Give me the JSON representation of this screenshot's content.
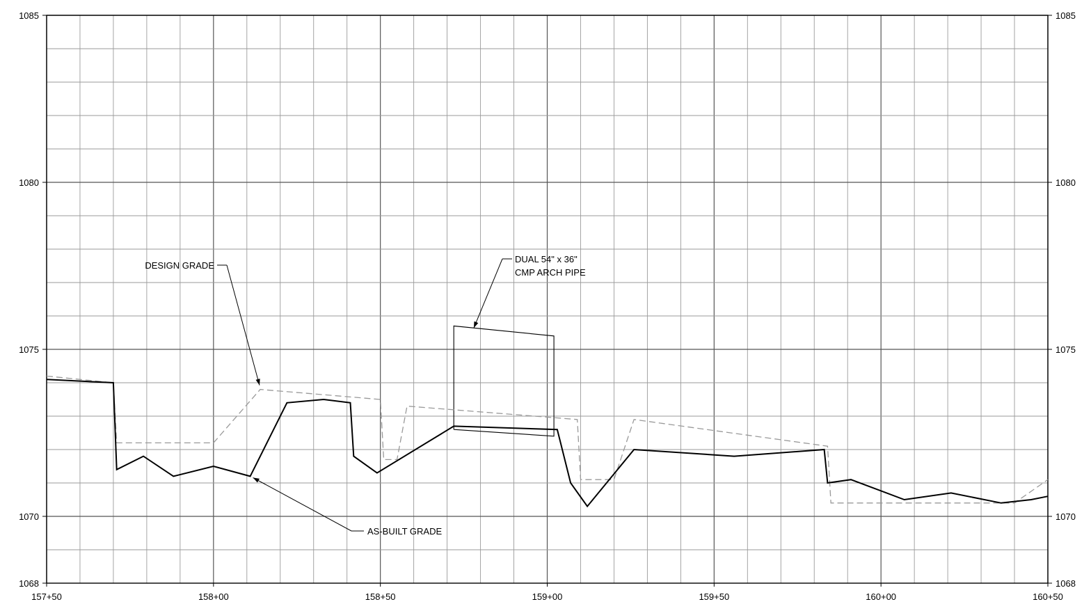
{
  "chart_data": {
    "type": "line",
    "title": "",
    "xlabel": "",
    "ylabel": "",
    "x_unit": "station_ft",
    "xlim": [
      15750,
      16050
    ],
    "ylim": [
      1068,
      1085
    ],
    "x_ticks": [
      {
        "value": 15750,
        "label": "157+50"
      },
      {
        "value": 15800,
        "label": "158+00"
      },
      {
        "value": 15850,
        "label": "158+50"
      },
      {
        "value": 15900,
        "label": "159+00"
      },
      {
        "value": 15950,
        "label": "159+50"
      },
      {
        "value": 16000,
        "label": "160+00"
      },
      {
        "value": 16050,
        "label": "160+50"
      }
    ],
    "y_ticks": [
      {
        "value": 1068,
        "label": "1068"
      },
      {
        "value": 1070,
        "label": "1070"
      },
      {
        "value": 1075,
        "label": "1075"
      },
      {
        "value": 1080,
        "label": "1080"
      },
      {
        "value": 1085,
        "label": "1085"
      }
    ],
    "grid": {
      "minor_x": 10,
      "minor_y": 1,
      "major_x": 50,
      "major_y": 5
    },
    "series": [
      {
        "name": "DESIGN GRADE",
        "style": "dashed",
        "color": "#999999",
        "points": [
          [
            15750,
            1074.2
          ],
          [
            15770,
            1074.0
          ],
          [
            15771,
            1072.2
          ],
          [
            15800,
            1072.2
          ],
          [
            15814,
            1073.8
          ],
          [
            15850,
            1073.5
          ],
          [
            15851,
            1071.7
          ],
          [
            15855,
            1071.7
          ],
          [
            15858,
            1073.3
          ],
          [
            15909,
            1072.9
          ],
          [
            15910,
            1071.1
          ],
          [
            15920,
            1071.1
          ],
          [
            15926,
            1072.9
          ],
          [
            15984,
            1072.1
          ],
          [
            15985,
            1070.4
          ],
          [
            16040,
            1070.4
          ],
          [
            16050,
            1071.1
          ]
        ]
      },
      {
        "name": "AS-BUILT GRADE",
        "style": "solid",
        "color": "#000000",
        "points": [
          [
            15750,
            1074.1
          ],
          [
            15770,
            1074.0
          ],
          [
            15771,
            1071.4
          ],
          [
            15779,
            1071.8
          ],
          [
            15788,
            1071.2
          ],
          [
            15800,
            1071.5
          ],
          [
            15811,
            1071.2
          ],
          [
            15822,
            1073.4
          ],
          [
            15833,
            1073.5
          ],
          [
            15841,
            1073.4
          ],
          [
            15842,
            1071.8
          ],
          [
            15849,
            1071.3
          ],
          [
            15872,
            1072.7
          ],
          [
            15903,
            1072.6
          ],
          [
            15907,
            1071.0
          ],
          [
            15912,
            1070.3
          ],
          [
            15926,
            1072.0
          ],
          [
            15956,
            1071.8
          ],
          [
            15983,
            1072.0
          ],
          [
            15984,
            1071.0
          ],
          [
            15991,
            1071.1
          ],
          [
            16007,
            1070.5
          ],
          [
            16021,
            1070.7
          ],
          [
            16036,
            1070.4
          ],
          [
            16045,
            1070.5
          ],
          [
            16050,
            1070.6
          ]
        ]
      }
    ],
    "structure": {
      "name": "DUAL 54\" x 36\" CMP ARCH PIPE",
      "x_start": 15872,
      "x_end": 15902,
      "top": [
        1075.7,
        1075.4
      ],
      "invert": [
        1072.6,
        1072.4
      ]
    },
    "annotations": [
      {
        "id": "design",
        "text": "DESIGN GRADE",
        "target": [
          15814,
          1073.8
        ]
      },
      {
        "id": "asbuilt",
        "text": "AS-BUILT GRADE",
        "target": [
          15811,
          1071.2
        ]
      },
      {
        "id": "pipe",
        "lines": [
          "DUAL 54\" x 36\"",
          "CMP ARCH PIPE"
        ],
        "target": [
          15878,
          1075.6
        ]
      }
    ]
  }
}
